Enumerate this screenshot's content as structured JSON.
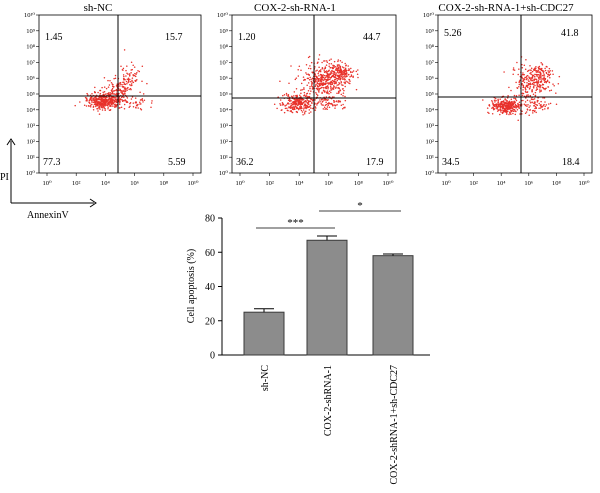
{
  "colors": {
    "dot": "#e8322b",
    "bar_fill": "#8c8c8c",
    "bar_stroke": "#3a3a3a",
    "axis": "#000000"
  },
  "flow_axis_labels": {
    "y": "PI",
    "x": "AnnexinV"
  },
  "flow_tick_labels": {
    "y": [
      "10⁰",
      "10¹",
      "10²",
      "10³",
      "10⁴",
      "10⁵",
      "10⁶",
      "10⁷",
      "10⁸",
      "10⁹",
      "10¹⁰"
    ],
    "x": [
      "10⁰",
      "10²",
      "10⁴",
      "10⁶",
      "10⁸",
      "10¹⁰"
    ]
  },
  "chart_data": [
    {
      "type": "scatter",
      "title": "sh-NC",
      "quadrants": {
        "upper_left": "1.45",
        "upper_right": "15.7",
        "lower_left": "77.3",
        "lower_right": "5.59"
      }
    },
    {
      "type": "scatter",
      "title": "COX-2-sh-RNA-1",
      "quadrants": {
        "upper_left": "1.20",
        "upper_right": "44.7",
        "lower_left": "36.2",
        "lower_right": "17.9"
      }
    },
    {
      "type": "scatter",
      "title": "COX-2-sh-RNA-1+sh-CDC27",
      "quadrants": {
        "upper_left": "5.26",
        "upper_right": "41.8",
        "lower_left": "34.5",
        "lower_right": "18.4"
      }
    },
    {
      "type": "bar",
      "categories": [
        "sh-NC",
        "COX-2-shRNA-1",
        "COX-2-shRNA-1+sh-CDC27"
      ],
      "values": [
        25,
        67,
        58
      ],
      "errors": [
        2,
        2.5,
        1
      ],
      "ylabel": "Cell apoptosis (%)",
      "ylim": [
        0,
        80
      ],
      "yticks": [
        "0",
        "20",
        "40",
        "60",
        "80"
      ],
      "significance": [
        {
          "label": "***",
          "from": 0,
          "to": 1
        },
        {
          "label": "*",
          "from": 1,
          "to": 2
        }
      ]
    }
  ]
}
